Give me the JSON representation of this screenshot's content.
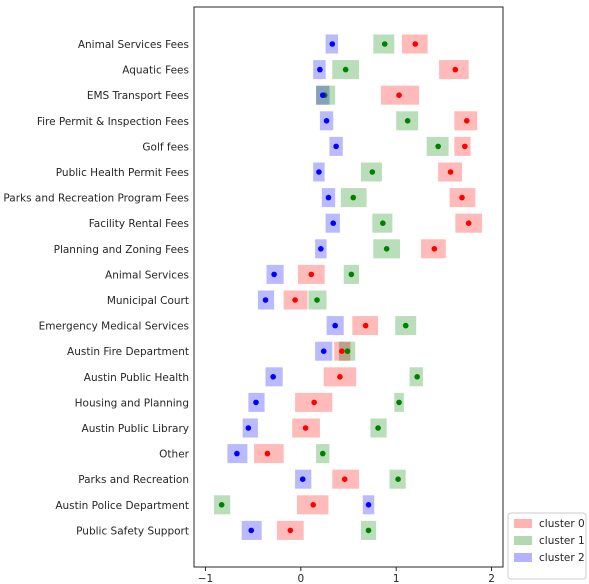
{
  "chart_data": {
    "type": "scatter",
    "title": "",
    "xlabel": "",
    "ylabel": "",
    "xlim": [
      -1.12,
      2.12
    ],
    "xticks": [
      -1,
      0,
      1,
      2
    ],
    "grid": false,
    "legend_position": "lower-right",
    "categories": [
      "Animal Services Fees",
      "Aquatic Fees",
      "EMS Transport Fees",
      "Fire Permit & Inspection Fees",
      "Golf fees",
      "Public Health Permit Fees",
      "Parks and Recreation Program Fees",
      "Facility Rental Fees",
      "Planning and Zoning Fees",
      "Animal Services",
      "Municipal Court",
      "Emergency Medical Services",
      "Austin Fire Department",
      "Austin Public Health",
      "Housing and Planning",
      "Austin Public Library",
      "Other",
      "Parks and Recreation",
      "Austin Police Department",
      "Public Safety Support"
    ],
    "series": [
      {
        "name": "cluster 0",
        "color": "#ff0000",
        "band_color": "#ffb3b3",
        "points": [
          {
            "x": 1.2,
            "lo": 1.06,
            "hi": 1.33
          },
          {
            "x": 1.62,
            "lo": 1.45,
            "hi": 1.76
          },
          {
            "x": 1.03,
            "lo": 0.84,
            "hi": 1.24
          },
          {
            "x": 1.74,
            "lo": 1.61,
            "hi": 1.85
          },
          {
            "x": 1.72,
            "lo": 1.61,
            "hi": 1.78
          },
          {
            "x": 1.57,
            "lo": 1.44,
            "hi": 1.69
          },
          {
            "x": 1.69,
            "lo": 1.56,
            "hi": 1.83
          },
          {
            "x": 1.76,
            "lo": 1.62,
            "hi": 1.9
          },
          {
            "x": 1.4,
            "lo": 1.26,
            "hi": 1.52
          },
          {
            "x": 0.11,
            "lo": -0.03,
            "hi": 0.25
          },
          {
            "x": -0.06,
            "lo": -0.18,
            "hi": 0.07
          },
          {
            "x": 0.68,
            "lo": 0.54,
            "hi": 0.81
          },
          {
            "x": 0.43,
            "lo": 0.35,
            "hi": 0.52
          },
          {
            "x": 0.41,
            "lo": 0.24,
            "hi": 0.58
          },
          {
            "x": 0.14,
            "lo": -0.06,
            "hi": 0.33
          },
          {
            "x": 0.05,
            "lo": -0.09,
            "hi": 0.2
          },
          {
            "x": -0.35,
            "lo": -0.49,
            "hi": -0.18
          },
          {
            "x": 0.46,
            "lo": 0.33,
            "hi": 0.61
          },
          {
            "x": 0.13,
            "lo": -0.04,
            "hi": 0.29
          },
          {
            "x": -0.11,
            "lo": -0.25,
            "hi": 0.03
          }
        ]
      },
      {
        "name": "cluster 1",
        "color": "#008000",
        "band_color": "#b3d9b3",
        "points": [
          {
            "x": 0.88,
            "lo": 0.76,
            "hi": 0.98
          },
          {
            "x": 0.47,
            "lo": 0.33,
            "hi": 0.61
          },
          {
            "x": 0.25,
            "lo": 0.16,
            "hi": 0.36
          },
          {
            "x": 1.12,
            "lo": 1.0,
            "hi": 1.23
          },
          {
            "x": 1.44,
            "lo": 1.32,
            "hi": 1.55
          },
          {
            "x": 0.75,
            "lo": 0.63,
            "hi": 0.85
          },
          {
            "x": 0.55,
            "lo": 0.42,
            "hi": 0.69
          },
          {
            "x": 0.86,
            "lo": 0.75,
            "hi": 0.96
          },
          {
            "x": 0.9,
            "lo": 0.76,
            "hi": 1.04
          },
          {
            "x": 0.53,
            "lo": 0.45,
            "hi": 0.61
          },
          {
            "x": 0.17,
            "lo": 0.08,
            "hi": 0.27
          },
          {
            "x": 1.1,
            "lo": 0.99,
            "hi": 1.21
          },
          {
            "x": 0.49,
            "lo": 0.4,
            "hi": 0.57
          },
          {
            "x": 1.22,
            "lo": 1.14,
            "hi": 1.28
          },
          {
            "x": 1.03,
            "lo": 0.98,
            "hi": 1.08
          },
          {
            "x": 0.81,
            "lo": 0.73,
            "hi": 0.9
          },
          {
            "x": 0.23,
            "lo": 0.16,
            "hi": 0.3
          },
          {
            "x": 1.02,
            "lo": 0.93,
            "hi": 1.1
          },
          {
            "x": -0.83,
            "lo": -0.91,
            "hi": -0.74
          },
          {
            "x": 0.71,
            "lo": 0.63,
            "hi": 0.79
          }
        ]
      },
      {
        "name": "cluster 2",
        "color": "#0000ff",
        "band_color": "#b3b3ff",
        "points": [
          {
            "x": 0.33,
            "lo": 0.26,
            "hi": 0.39
          },
          {
            "x": 0.2,
            "lo": 0.13,
            "hi": 0.26
          },
          {
            "x": 0.23,
            "lo": 0.16,
            "hi": 0.3
          },
          {
            "x": 0.27,
            "lo": 0.2,
            "hi": 0.34
          },
          {
            "x": 0.37,
            "lo": 0.3,
            "hi": 0.44
          },
          {
            "x": 0.19,
            "lo": 0.13,
            "hi": 0.25
          },
          {
            "x": 0.29,
            "lo": 0.22,
            "hi": 0.36
          },
          {
            "x": 0.34,
            "lo": 0.26,
            "hi": 0.41
          },
          {
            "x": 0.21,
            "lo": 0.15,
            "hi": 0.27
          },
          {
            "x": -0.28,
            "lo": -0.36,
            "hi": -0.18
          },
          {
            "x": -0.37,
            "lo": -0.45,
            "hi": -0.28
          },
          {
            "x": 0.36,
            "lo": 0.27,
            "hi": 0.45
          },
          {
            "x": 0.24,
            "lo": 0.15,
            "hi": 0.33
          },
          {
            "x": -0.29,
            "lo": -0.37,
            "hi": -0.19
          },
          {
            "x": -0.47,
            "lo": -0.55,
            "hi": -0.38
          },
          {
            "x": -0.55,
            "lo": -0.61,
            "hi": -0.45
          },
          {
            "x": -0.67,
            "lo": -0.77,
            "hi": -0.56
          },
          {
            "x": 0.02,
            "lo": -0.06,
            "hi": 0.11
          },
          {
            "x": 0.71,
            "lo": 0.65,
            "hi": 0.77
          },
          {
            "x": -0.52,
            "lo": -0.62,
            "hi": -0.41
          }
        ]
      }
    ]
  }
}
